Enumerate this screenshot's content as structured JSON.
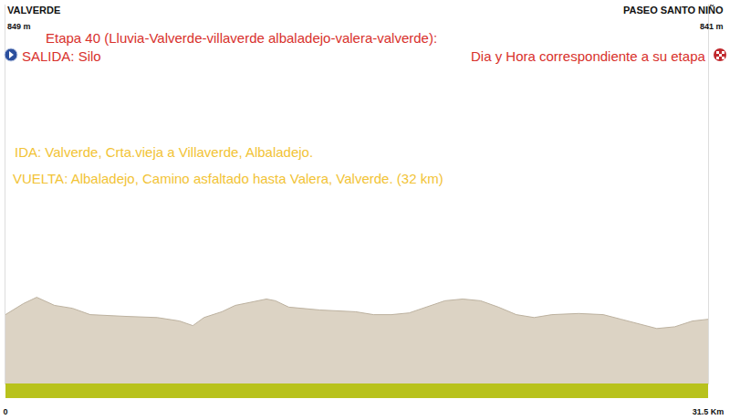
{
  "chart_data": {
    "type": "area",
    "title": "Etapa 40 (Lluvia-Valverde-villaverde albaladejo-valera-valverde):",
    "start": {
      "label": "VALVERDE",
      "elevation_label": "849 m",
      "note": "SALIDA: Silo"
    },
    "finish": {
      "label": "PASEO SANTO NIÑO",
      "elevation_label": "841 m",
      "note": "Dia y Hora correspondiente a su etapa"
    },
    "annotations": [
      "IDA: Valverde, Crta.vieja a Villaverde, Albaladejo.",
      "VUELTA: Albaladejo, Camino asfaltado hasta Valera, Valverde. (32 km)"
    ],
    "x": [
      0,
      0.8,
      1.4,
      2.2,
      3.0,
      3.8,
      5.4,
      6.8,
      7.8,
      8.4,
      8.9,
      9.7,
      10.3,
      10.9,
      11.7,
      12.1,
      12.7,
      14.1,
      15.7,
      16.5,
      17.3,
      18.1,
      18.9,
      19.7,
      20.5,
      21.3,
      22.1,
      22.9,
      23.7,
      24.5,
      25.7,
      26.8,
      27.6,
      28.4,
      29.2,
      30.0,
      30.8,
      31.5
    ],
    "values": [
      849,
      868,
      879,
      865,
      860,
      849,
      846,
      844,
      838,
      830,
      844,
      854,
      865,
      870,
      876,
      873,
      862,
      857,
      854,
      849,
      849,
      852,
      862,
      873,
      876,
      873,
      862,
      849,
      844,
      849,
      851,
      849,
      841,
      833,
      825,
      828,
      838,
      841
    ],
    "color": "#dcd3c4",
    "xlim": [
      0,
      31.5
    ],
    "xticks": [
      0,
      {
        "value": 31.5,
        "label": "31.5 Km"
      }
    ],
    "ylim": [
      730,
      1385
    ],
    "grid": false,
    "tick_labels": "x"
  }
}
